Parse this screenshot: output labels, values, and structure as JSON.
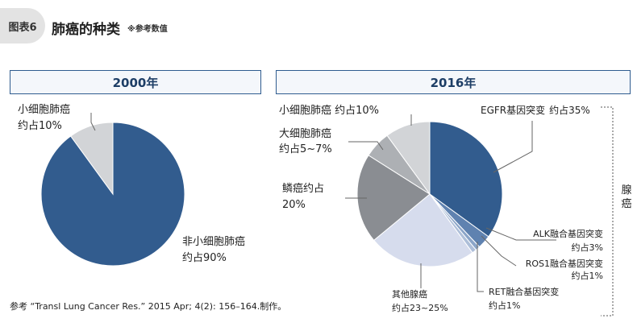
{
  "header": {
    "badge": "图表6",
    "title": "肺癌的种类",
    "note": "※参考数值"
  },
  "chart_data": [
    {
      "type": "pie",
      "title": "2000年",
      "slices": [
        {
          "label": "非小细胞肺癌",
          "value_label": "约占90%",
          "value": 90,
          "color": "#325c8e"
        },
        {
          "label": "小细胞肺癌",
          "value_label": "约占10%",
          "value": 10,
          "color": "#d2d4d7"
        }
      ]
    },
    {
      "type": "pie",
      "title": "2016年",
      "slices": [
        {
          "label": "EGFR基因突变",
          "value_label": "约占35%",
          "value": 35,
          "color": "#325c8e"
        },
        {
          "label": "ALK融合基因突变",
          "value_label": "约占3%",
          "value": 3,
          "color": "#5f82b0"
        },
        {
          "label": "ROS1融合基因突变",
          "value_label": "约占1%",
          "value": 1,
          "color": "#8ba5c8"
        },
        {
          "label": "RET融合基因突变",
          "value_label": "约占1%",
          "value": 1,
          "color": "#aebfd9"
        },
        {
          "label": "其他腺癌",
          "value_label": "约占23~25%",
          "value": 24,
          "color": "#d6dced"
        },
        {
          "label": "鳞癌约占",
          "value_label": "20%",
          "value": 20,
          "color": "#8a8d92"
        },
        {
          "label": "大细胞肺癌",
          "value_label": "约占5~7%",
          "value": 6,
          "color": "#adb0b4"
        },
        {
          "label": "小细胞肺癌 约占10%",
          "value_label": "",
          "value": 10,
          "color": "#d2d4d7"
        }
      ],
      "group_label": "腺癌"
    }
  ],
  "footer": {
    "source": "参考 “Transl Lung Cancer Res.” 2015 Apr; 4(2): 156–164.制作。"
  }
}
